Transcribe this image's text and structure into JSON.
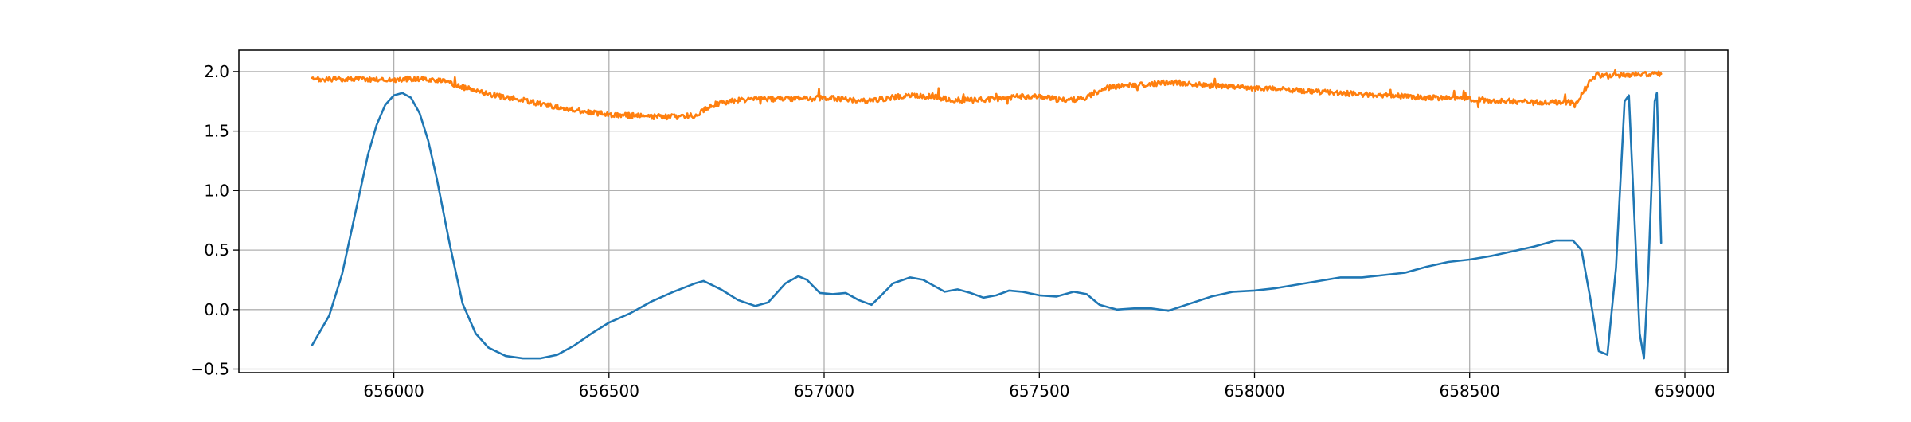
{
  "chart_data": {
    "type": "line",
    "title": "",
    "xlabel": "",
    "ylabel": "",
    "xlim": [
      655640,
      659100
    ],
    "ylim": [
      -0.53,
      2.18
    ],
    "grid": true,
    "legend": "none",
    "x_ticks": [
      656000,
      656500,
      657000,
      657500,
      658000,
      658500,
      659000
    ],
    "x_tick_labels": [
      "656000",
      "656500",
      "657000",
      "657500",
      "658000",
      "658500",
      "659000"
    ],
    "y_ticks": [
      -0.5,
      0.0,
      0.5,
      1.0,
      1.5,
      2.0
    ],
    "y_tick_labels": [
      "−0.5",
      "0.0",
      "0.5",
      "1.0",
      "1.5",
      "2.0"
    ],
    "series": [
      {
        "color": "#1f77b4",
        "x": [
          655810,
          655850,
          655880,
          655910,
          655940,
          655960,
          655980,
          656000,
          656020,
          656040,
          656060,
          656080,
          656100,
          656130,
          656160,
          656190,
          656220,
          656260,
          656300,
          656340,
          656380,
          656420,
          656460,
          656500,
          656550,
          656600,
          656650,
          656700,
          656720,
          656760,
          656800,
          656840,
          656870,
          656910,
          656940,
          656960,
          656990,
          657020,
          657050,
          657080,
          657110,
          657130,
          657160,
          657200,
          657230,
          657260,
          657280,
          657310,
          657340,
          657370,
          657400,
          657430,
          657460,
          657500,
          657540,
          657580,
          657610,
          657640,
          657680,
          657720,
          657760,
          657800,
          657850,
          657900,
          657950,
          658000,
          658050,
          658100,
          658150,
          658200,
          658250,
          658300,
          658350,
          658400,
          658450,
          658500,
          658550,
          658600,
          658650,
          658700,
          658740,
          658760,
          658780,
          658800,
          658820,
          658840,
          658860,
          658870,
          658880,
          658895,
          658905,
          658915,
          658930,
          658935,
          658945
        ],
        "y": [
          -0.3,
          -0.05,
          0.3,
          0.8,
          1.3,
          1.55,
          1.72,
          1.8,
          1.82,
          1.78,
          1.65,
          1.42,
          1.1,
          0.55,
          0.05,
          -0.2,
          -0.32,
          -0.39,
          -0.41,
          -0.41,
          -0.38,
          -0.3,
          -0.2,
          -0.11,
          -0.03,
          0.07,
          0.15,
          0.22,
          0.24,
          0.17,
          0.08,
          0.03,
          0.06,
          0.22,
          0.28,
          0.25,
          0.14,
          0.13,
          0.14,
          0.08,
          0.04,
          0.11,
          0.22,
          0.27,
          0.25,
          0.19,
          0.15,
          0.17,
          0.14,
          0.1,
          0.12,
          0.16,
          0.15,
          0.12,
          0.11,
          0.15,
          0.13,
          0.04,
          0.0,
          0.01,
          0.01,
          -0.01,
          0.05,
          0.11,
          0.15,
          0.16,
          0.18,
          0.21,
          0.24,
          0.27,
          0.27,
          0.29,
          0.31,
          0.36,
          0.4,
          0.42,
          0.45,
          0.49,
          0.53,
          0.58,
          0.58,
          0.5,
          0.1,
          -0.35,
          -0.38,
          0.35,
          1.75,
          1.8,
          1.0,
          -0.2,
          -0.41,
          0.3,
          1.75,
          1.82,
          0.56
        ]
      },
      {
        "color": "#ff7f0e",
        "x": [
          655810,
          655900,
          656000,
          656050,
          656100,
          656150,
          656200,
          656250,
          656300,
          656350,
          656400,
          656450,
          656500,
          656550,
          656600,
          656650,
          656700,
          656720,
          656750,
          656800,
          656850,
          656900,
          656950,
          657000,
          657050,
          657100,
          657150,
          657200,
          657250,
          657300,
          657350,
          657400,
          657450,
          657500,
          657550,
          657600,
          657650,
          657700,
          657750,
          657800,
          657850,
          657900,
          657950,
          658000,
          658050,
          658100,
          658150,
          658200,
          658250,
          658300,
          658350,
          658400,
          658450,
          658500,
          658550,
          658600,
          658650,
          658700,
          658750,
          658780,
          658800,
          658820,
          658850,
          658900,
          658945
        ],
        "y": [
          1.93,
          1.94,
          1.93,
          1.94,
          1.93,
          1.88,
          1.83,
          1.79,
          1.76,
          1.72,
          1.69,
          1.66,
          1.64,
          1.63,
          1.62,
          1.62,
          1.63,
          1.68,
          1.73,
          1.76,
          1.77,
          1.77,
          1.77,
          1.78,
          1.77,
          1.75,
          1.78,
          1.8,
          1.79,
          1.76,
          1.76,
          1.77,
          1.79,
          1.79,
          1.76,
          1.77,
          1.86,
          1.88,
          1.89,
          1.91,
          1.9,
          1.88,
          1.87,
          1.86,
          1.86,
          1.84,
          1.83,
          1.82,
          1.81,
          1.8,
          1.79,
          1.78,
          1.78,
          1.77,
          1.76,
          1.75,
          1.74,
          1.74,
          1.75,
          1.92,
          1.98,
          1.96,
          1.97,
          1.98,
          1.98
        ]
      }
    ]
  }
}
